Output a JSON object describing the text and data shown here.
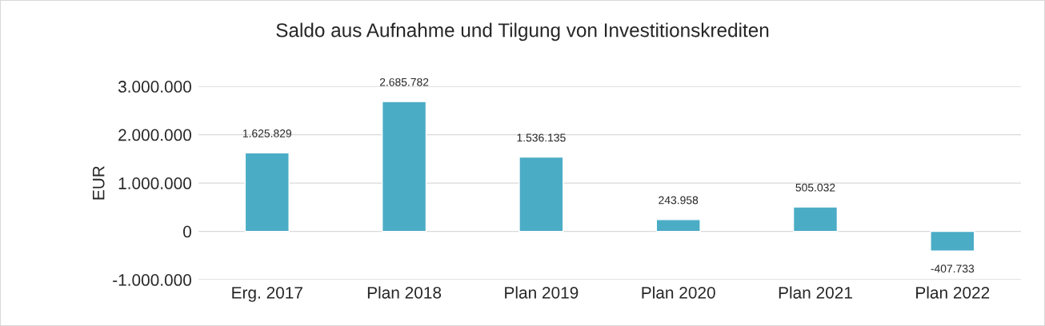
{
  "chart_data": {
    "type": "bar",
    "title": "Saldo aus Aufnahme und Tilgung von Investitionskrediten",
    "ylabel": "EUR",
    "categories": [
      "Erg. 2017",
      "Plan 2018",
      "Plan 2019",
      "Plan 2020",
      "Plan 2021",
      "Plan 2022"
    ],
    "values": [
      1625829,
      2685782,
      1536135,
      243958,
      505032,
      -407733
    ],
    "value_labels": [
      "1.625.829",
      "2.685.782",
      "1.536.135",
      "243.958",
      "505.032",
      "-407.733"
    ],
    "color": "#4bacc6",
    "ylim": [
      -1000000,
      3000000
    ],
    "yticks": [
      {
        "value": -1000000,
        "label": "-1.000.000"
      },
      0,
      {
        "value": 1000000,
        "label": "1.000.000"
      },
      {
        "value": 2000000,
        "label": "2.000.000"
      },
      {
        "value": 3000000,
        "label": "3.000.000"
      }
    ],
    "grid": "y",
    "legend": false
  }
}
